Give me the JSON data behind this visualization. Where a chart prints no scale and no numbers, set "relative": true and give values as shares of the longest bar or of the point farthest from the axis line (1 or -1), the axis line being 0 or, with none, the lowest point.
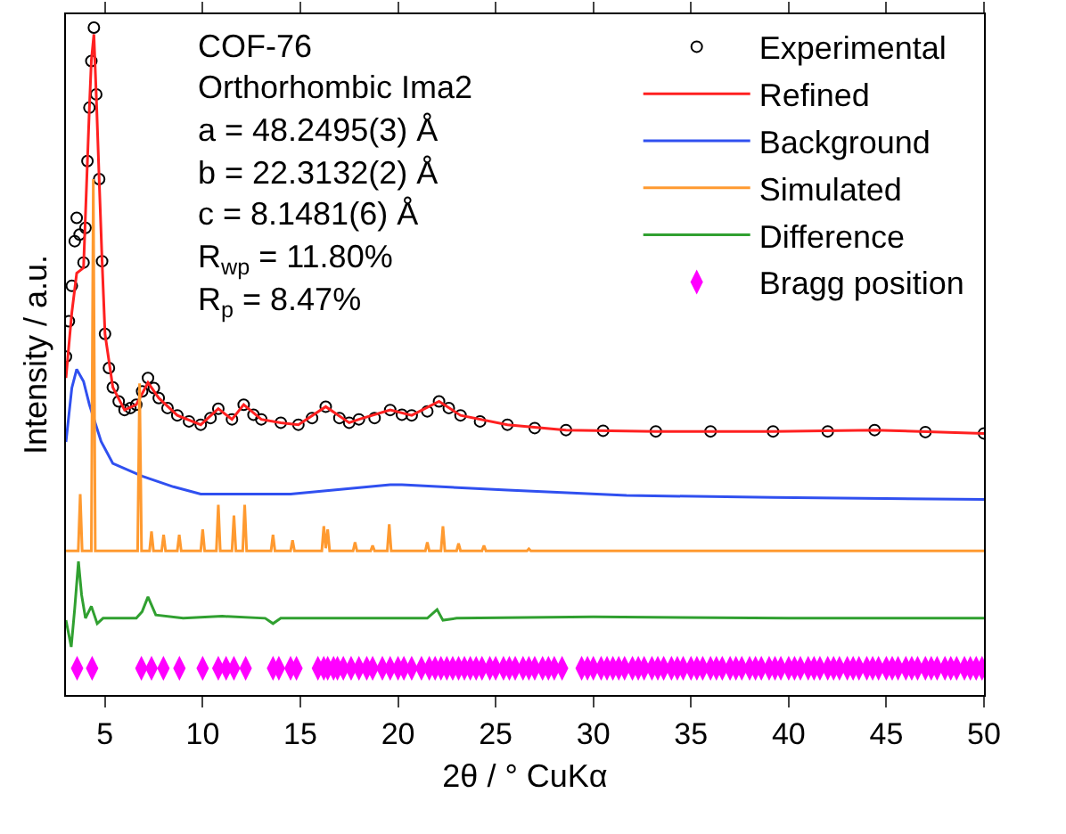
{
  "chart_data": {
    "type": "line",
    "relative": true,
    "xlabel": "2θ / ° CuKα",
    "ylabel": "Intensity / a.u.",
    "xlim": [
      3,
      50
    ],
    "xticks": [
      5,
      10,
      15,
      20,
      25,
      30,
      35,
      40,
      45,
      50
    ],
    "legend": "top right",
    "grid": false,
    "annotations": [
      "COF-76",
      "Orthorhombic Ima2",
      "a = 48.2495(3) Å",
      "b = 22.3132(2) Å",
      "c = 8.1481(6) Å",
      "R$_{wp}$ = 11.80%",
      "R$_{p}$ = 8.47%"
    ],
    "series": [
      {
        "name": "Experimental",
        "type": "scatter",
        "marker": "circle",
        "color": "#000000",
        "x": [
          3.0,
          3.15,
          3.3,
          3.45,
          3.55,
          3.7,
          3.9,
          4.0,
          4.1,
          4.2,
          4.3,
          4.43,
          4.55,
          4.7,
          4.85,
          5.0,
          5.2,
          5.4,
          5.7,
          6.0,
          6.3,
          6.6,
          6.9,
          7.2,
          7.5,
          7.75,
          8.2,
          8.7,
          9.3,
          9.9,
          10.4,
          10.8,
          11.5,
          12.1,
          12.6,
          13.0,
          14.0,
          14.9,
          15.6,
          16.3,
          17.0,
          17.5,
          18.0,
          18.8,
          19.6,
          20.2,
          20.7,
          21.5,
          22.1,
          22.6,
          23.2,
          24.2,
          25.6,
          27.0,
          28.6,
          30.5,
          33.2,
          36.0,
          39.2,
          42.0,
          44.4,
          47.0,
          50.0
        ],
        "values": [
          0.507,
          0.56,
          0.613,
          0.68,
          0.715,
          0.69,
          0.648,
          0.7,
          0.8,
          0.88,
          0.95,
          1.0,
          0.9,
          0.773,
          0.65,
          0.541,
          0.49,
          0.461,
          0.44,
          0.427,
          0.43,
          0.435,
          0.455,
          0.475,
          0.46,
          0.445,
          0.43,
          0.419,
          0.41,
          0.405,
          0.415,
          0.429,
          0.413,
          0.435,
          0.42,
          0.413,
          0.408,
          0.405,
          0.415,
          0.432,
          0.415,
          0.408,
          0.413,
          0.415,
          0.427,
          0.42,
          0.419,
          0.425,
          0.44,
          0.43,
          0.419,
          0.41,
          0.405,
          0.4,
          0.397,
          0.396,
          0.395,
          0.395,
          0.395,
          0.395,
          0.397,
          0.394,
          0.392
        ]
      },
      {
        "name": "Refined",
        "color": "#ff2020",
        "x": [
          3.0,
          3.3,
          3.55,
          3.9,
          4.1,
          4.2,
          4.3,
          4.43,
          4.55,
          4.7,
          4.85,
          5.0,
          5.4,
          6.0,
          6.6,
          7.2,
          7.75,
          8.7,
          9.9,
          10.8,
          11.5,
          12.1,
          13.0,
          14.0,
          14.9,
          16.3,
          17.5,
          18.0,
          19.6,
          20.7,
          22.1,
          23.2,
          25.6,
          28.6,
          33.2,
          39.2,
          44.4,
          50.0
        ],
        "values": [
          0.475,
          0.573,
          0.632,
          0.64,
          0.8,
          0.88,
          0.95,
          0.99,
          0.9,
          0.773,
          0.65,
          0.541,
          0.461,
          0.427,
          0.435,
          0.468,
          0.445,
          0.419,
          0.405,
          0.429,
          0.413,
          0.435,
          0.413,
          0.408,
          0.405,
          0.432,
          0.408,
          0.413,
          0.427,
          0.419,
          0.44,
          0.419,
          0.405,
          0.397,
          0.395,
          0.395,
          0.397,
          0.392
        ]
      },
      {
        "name": "Background",
        "color": "#3050f0",
        "x": [
          3.0,
          3.3,
          3.55,
          3.9,
          4.2,
          4.8,
          5.4,
          6.9,
          8.5,
          9.9,
          14.5,
          19.6,
          20.2,
          25.6,
          31.7,
          39.2,
          50.0
        ],
        "values": [
          0.379,
          0.46,
          0.488,
          0.47,
          0.435,
          0.38,
          0.347,
          0.328,
          0.312,
          0.301,
          0.301,
          0.315,
          0.315,
          0.307,
          0.299,
          0.296,
          0.293
        ]
      },
      {
        "name": "Simulated",
        "color": "#ff9a30",
        "x": [
          3.0,
          3.63,
          3.73,
          3.83,
          4.3,
          4.4,
          4.5,
          6.67,
          6.77,
          6.87,
          7.28,
          7.38,
          7.48,
          7.9,
          8.0,
          8.1,
          8.7,
          8.8,
          8.9,
          9.9,
          10.0,
          10.1,
          10.7,
          10.8,
          10.9,
          11.5,
          11.6,
          11.7,
          12.05,
          12.15,
          12.25,
          13.5,
          13.6,
          13.7,
          14.5,
          14.6,
          14.7,
          16.1,
          16.2,
          16.3,
          16.4,
          16.5,
          17.7,
          17.8,
          17.9,
          18.6,
          18.7,
          18.8,
          19.45,
          19.55,
          19.65,
          21.4,
          21.5,
          21.6,
          22.2,
          22.3,
          22.4,
          23.0,
          23.1,
          23.2,
          24.3,
          24.4,
          24.5,
          26.6,
          26.7,
          26.8,
          50.0
        ],
        "values": [
          0.216,
          0.216,
          0.301,
          0.216,
          0.216,
          0.773,
          0.216,
          0.216,
          0.467,
          0.216,
          0.216,
          0.245,
          0.216,
          0.216,
          0.24,
          0.216,
          0.216,
          0.24,
          0.216,
          0.216,
          0.248,
          0.216,
          0.216,
          0.285,
          0.216,
          0.216,
          0.269,
          0.216,
          0.216,
          0.285,
          0.216,
          0.216,
          0.24,
          0.216,
          0.216,
          0.232,
          0.216,
          0.216,
          0.253,
          0.22,
          0.248,
          0.216,
          0.216,
          0.229,
          0.216,
          0.216,
          0.224,
          0.216,
          0.216,
          0.256,
          0.216,
          0.216,
          0.229,
          0.216,
          0.216,
          0.253,
          0.216,
          0.216,
          0.227,
          0.216,
          0.216,
          0.224,
          0.216,
          0.216,
          0.219,
          0.216,
          0.216
        ]
      },
      {
        "name": "Difference",
        "color": "#30a030",
        "x": [
          3.0,
          3.27,
          3.45,
          3.64,
          3.8,
          4.0,
          4.3,
          4.6,
          4.9,
          6.6,
          6.9,
          7.2,
          7.6,
          9.0,
          11.0,
          13.2,
          13.6,
          14.0,
          21.5,
          22.0,
          22.3,
          23.0,
          30.0,
          40.0,
          50.0
        ],
        "values": [
          0.112,
          0.072,
          0.13,
          0.2,
          0.15,
          0.115,
          0.133,
          0.107,
          0.115,
          0.115,
          0.125,
          0.147,
          0.12,
          0.115,
          0.118,
          0.115,
          0.107,
          0.115,
          0.115,
          0.128,
          0.112,
          0.115,
          0.117,
          0.115,
          0.115
        ]
      },
      {
        "name": "Bragg position",
        "type": "scatter",
        "marker": "diamond",
        "color": "#ff00ff",
        "x": [
          3.57,
          4.34,
          6.86,
          7.38,
          7.99,
          8.81,
          10.0,
          10.8,
          11.2,
          11.6,
          12.2,
          13.6,
          13.9,
          14.5,
          14.8,
          15.9,
          16.2,
          16.4,
          16.7,
          16.9,
          17.2,
          17.6,
          18.0,
          18.4,
          18.7,
          19.2,
          19.6,
          20.0,
          20.3,
          20.7,
          21.2,
          21.6,
          21.9,
          22.2,
          22.5,
          22.8,
          23.1,
          23.4,
          23.7,
          24.0,
          24.3,
          24.7,
          25.0,
          25.4,
          25.7,
          26.0,
          26.4,
          26.7,
          27.0,
          27.4,
          27.7,
          28.0,
          28.4,
          29.4,
          29.7,
          30.0,
          30.4,
          30.7,
          31.0,
          31.3,
          31.6,
          32.0,
          32.3,
          32.6,
          33.0,
          33.3,
          33.6,
          34.0,
          34.3,
          34.6,
          35.0,
          35.3,
          35.6,
          36.0,
          36.3,
          36.6,
          37.0,
          37.3,
          37.6,
          38.0,
          38.3,
          38.6,
          39.0,
          39.3,
          39.6,
          40.0,
          40.3,
          40.6,
          41.0,
          41.3,
          41.6,
          42.0,
          42.3,
          42.6,
          43.0,
          43.3,
          43.6,
          44.0,
          44.3,
          44.6,
          45.0,
          45.3,
          45.6,
          46.0,
          46.3,
          46.6,
          47.0,
          47.3,
          47.6,
          48.0,
          48.3,
          48.6,
          49.0,
          49.3,
          49.6,
          49.9
        ],
        "values": [
          0.04,
          0.04,
          0.04,
          0.04,
          0.04,
          0.04,
          0.04,
          0.04,
          0.04,
          0.04,
          0.04,
          0.04,
          0.04,
          0.04,
          0.04,
          0.04,
          0.04,
          0.04,
          0.04,
          0.04,
          0.04,
          0.04,
          0.04,
          0.04,
          0.04,
          0.04,
          0.04,
          0.04,
          0.04,
          0.04,
          0.04,
          0.04,
          0.04,
          0.04,
          0.04,
          0.04,
          0.04,
          0.04,
          0.04,
          0.04,
          0.04,
          0.04,
          0.04,
          0.04,
          0.04,
          0.04,
          0.04,
          0.04,
          0.04,
          0.04,
          0.04,
          0.04,
          0.04,
          0.04,
          0.04,
          0.04,
          0.04,
          0.04,
          0.04,
          0.04,
          0.04,
          0.04,
          0.04,
          0.04,
          0.04,
          0.04,
          0.04,
          0.04,
          0.04,
          0.04,
          0.04,
          0.04,
          0.04,
          0.04,
          0.04,
          0.04,
          0.04,
          0.04,
          0.04,
          0.04,
          0.04,
          0.04,
          0.04,
          0.04,
          0.04,
          0.04,
          0.04,
          0.04,
          0.04,
          0.04,
          0.04,
          0.04,
          0.04,
          0.04,
          0.04,
          0.04,
          0.04,
          0.04,
          0.04,
          0.04,
          0.04,
          0.04,
          0.04,
          0.04,
          0.04,
          0.04,
          0.04,
          0.04,
          0.04,
          0.04,
          0.04,
          0.04,
          0.04,
          0.04,
          0.04,
          0.04
        ]
      }
    ]
  }
}
